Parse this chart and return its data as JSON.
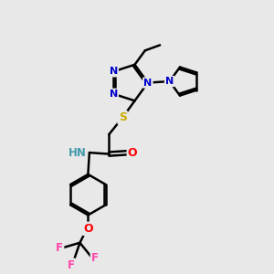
{
  "bg_color": "#e8e8e8",
  "atom_colors": {
    "N": "#0000cc",
    "S": "#ccaa00",
    "O": "#ff0000",
    "F": "#ff44aa",
    "H": "#4499aa",
    "C": "#000000"
  },
  "bond_color": "#000000",
  "bond_width": 1.8
}
